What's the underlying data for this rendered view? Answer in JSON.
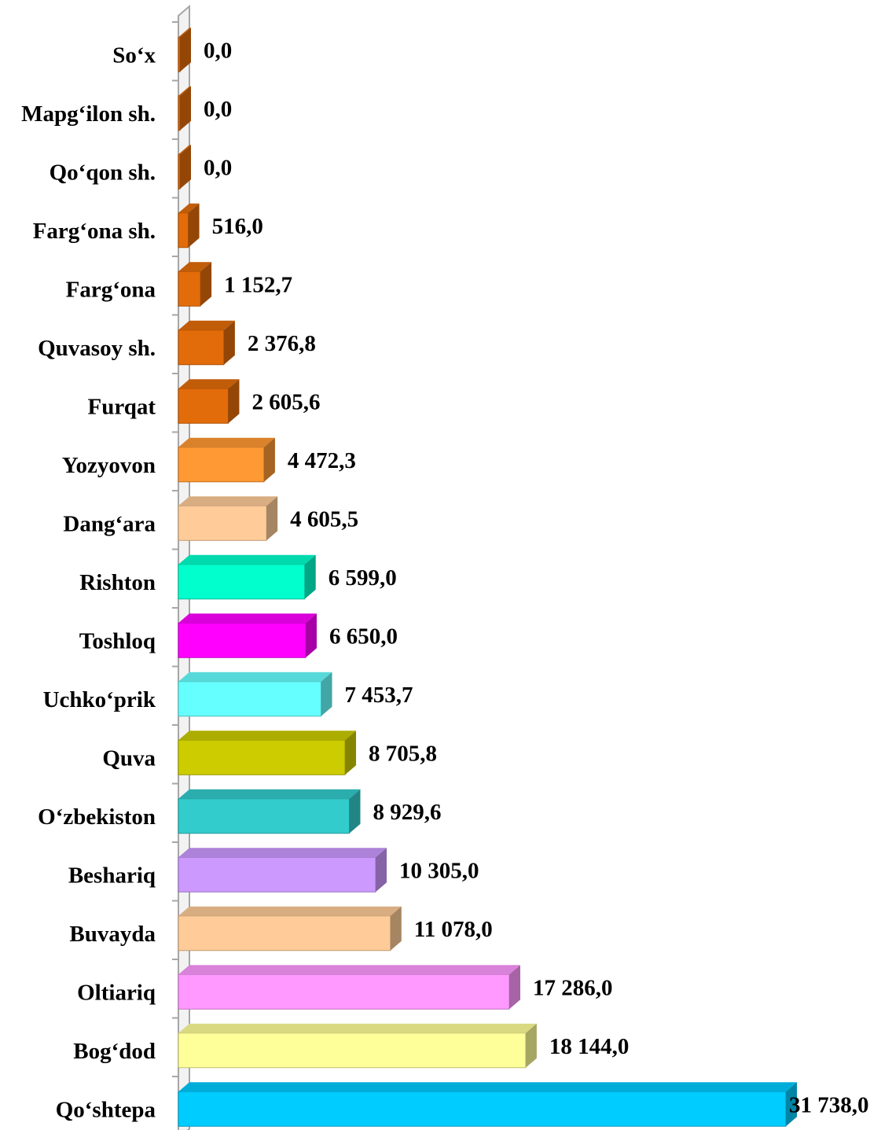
{
  "chart_data": {
    "type": "bar",
    "orientation": "horizontal",
    "style": "3d",
    "title": "",
    "xlabel": "",
    "ylabel": "",
    "xlim": [
      0,
      31738
    ],
    "grid": false,
    "legend": "none",
    "categories": [
      "So‘x",
      "Mapg‘ilon sh.",
      "Qo‘qon sh.",
      "Farg‘ona sh.",
      "Farg‘ona",
      "Quvasoy sh.",
      "Furqat",
      "Yozyovon",
      "Dang‘ara",
      "Rishton",
      "Toshloq",
      "Uchko‘prik",
      "Quva",
      "O‘zbekiston",
      "Beshariq",
      "Buvayda",
      "Oltiariq",
      "Bog‘dod",
      "Qo‘shtepa"
    ],
    "values": [
      0.0,
      0.0,
      0.0,
      516.0,
      1152.7,
      2376.8,
      2605.6,
      4472.3,
      4605.5,
      6599.0,
      6650.0,
      7453.7,
      8705.8,
      8929.6,
      10305.0,
      11078.0,
      17286.0,
      18144.0,
      31738.0
    ],
    "value_labels": [
      "0,0",
      "0,0",
      "0,0",
      "516,0",
      "1 152,7",
      "2 376,8",
      "2 605,6",
      "4 472,3",
      "4 605,5",
      "6 599,0",
      "6 650,0",
      "7 453,7",
      "8 705,8",
      "8 929,6",
      "10 305,0",
      "11 078,0",
      "17 286,0",
      "18 144,0",
      "31 738,0"
    ],
    "colors": [
      "#e36c0a",
      "#e36c0a",
      "#e36c0a",
      "#e36c0a",
      "#e36c0a",
      "#e36c0a",
      "#e36c0a",
      "#ff9933",
      "#ffcc99",
      "#00ffcc",
      "#ff00ff",
      "#66ffff",
      "#cccc00",
      "#33cccc",
      "#cc99ff",
      "#ffcc99",
      "#ff99ff",
      "#ffff99",
      "#00ccff"
    ],
    "axis_color": "#a6a6a6"
  }
}
